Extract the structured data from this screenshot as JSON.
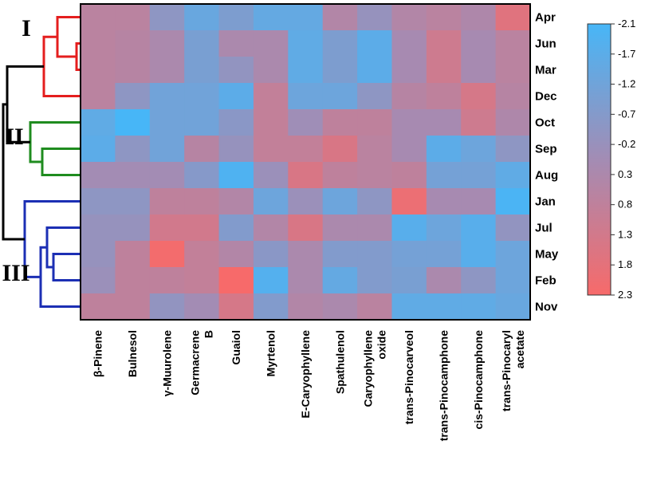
{
  "chart_data": {
    "type": "heatmap",
    "rows": [
      "Apr",
      "Jun",
      "Mar",
      "Dec",
      "Oct",
      "Sep",
      "Aug",
      "Jan",
      "Jul",
      "May",
      "Feb",
      "Nov"
    ],
    "columns": [
      [
        "β-Pinene"
      ],
      [
        "Bulnesol"
      ],
      [
        "γ-Muurolene"
      ],
      [
        "Germacrene",
        "B"
      ],
      [
        "Guaiol"
      ],
      [
        "Myrtenol"
      ],
      [
        "E-Caryophyllene"
      ],
      [
        "Spathulenol"
      ],
      [
        "Caryophyllene",
        "oxide"
      ],
      [
        "trans-Pinocarveol"
      ],
      [
        "trans-Pinocamphone"
      ],
      [
        "cis-Pinocamphone"
      ],
      [
        "trans-Pinocaryl",
        "acetate"
      ]
    ],
    "values": [
      [
        0.7,
        0.7,
        -0.4,
        -1.3,
        -0.8,
        -1.4,
        -1.4,
        0.5,
        -0.2,
        0.5,
        0.7,
        0.4,
        1.7
      ],
      [
        0.7,
        0.6,
        0.3,
        -0.9,
        0.3,
        0.3,
        -1.5,
        -0.8,
        -1.6,
        0.2,
        1.2,
        0.2,
        0.7
      ],
      [
        0.7,
        0.6,
        0.3,
        -0.9,
        -0.3,
        0.3,
        -1.5,
        -0.8,
        -1.6,
        0.2,
        1.2,
        0.2,
        0.7
      ],
      [
        0.7,
        -0.4,
        -1.1,
        -1.1,
        -1.6,
        0.9,
        -1.2,
        -1.2,
        -0.4,
        0.6,
        0.8,
        1.4,
        0.6
      ],
      [
        -1.5,
        -2.1,
        -1.1,
        -1.1,
        -0.5,
        0.9,
        0.0,
        0.8,
        0.8,
        0.2,
        0.2,
        1.2,
        0.4
      ],
      [
        -1.6,
        -0.4,
        -1.1,
        0.6,
        -0.2,
        0.9,
        0.9,
        1.5,
        0.7,
        0.2,
        -1.6,
        -1.2,
        -0.4
      ],
      [
        0.1,
        0.1,
        0.1,
        -0.6,
        -1.9,
        -0.1,
        1.5,
        0.8,
        0.7,
        0.8,
        -1.0,
        -1.0,
        -1.5
      ],
      [
        -0.4,
        -0.4,
        0.8,
        0.8,
        0.5,
        -1.2,
        -0.1,
        -1.2,
        -0.4,
        2.0,
        0.2,
        0.2,
        -2.0
      ],
      [
        -0.2,
        -0.2,
        1.3,
        1.3,
        -0.7,
        0.5,
        1.5,
        0.3,
        0.3,
        -1.7,
        -1.2,
        -1.7,
        -0.3
      ],
      [
        -0.2,
        0.8,
        2.2,
        0.9,
        0.5,
        -0.5,
        0.3,
        -0.7,
        -0.7,
        -1.0,
        -1.0,
        -1.7,
        -1.2
      ],
      [
        -0.1,
        0.8,
        0.8,
        0.9,
        2.3,
        -1.8,
        0.3,
        -1.4,
        -0.7,
        -0.9,
        0.3,
        -0.4,
        -1.2
      ],
      [
        0.8,
        0.8,
        -0.3,
        0.1,
        1.4,
        -0.7,
        0.5,
        0.3,
        0.7,
        -1.5,
        -1.5,
        -1.5,
        -1.3
      ]
    ],
    "legend": {
      "ticks": [
        "-2.1",
        "-1.7",
        "-1.2",
        "-0.7",
        "-0.2",
        "0.3",
        "0.8",
        "1.3",
        "1.8",
        "2.3"
      ],
      "min": -2.1,
      "max": 2.3,
      "low_color": "#47b6f7",
      "mid_color": "#a38cb4",
      "high_color": "#f76a6a",
      "placement": "right"
    },
    "clusters": [
      {
        "label": "I",
        "color": "#e41e1e",
        "members": [
          "Apr",
          "Jun",
          "Mar",
          "Dec"
        ]
      },
      {
        "label": "II",
        "color": "#1f8c1f",
        "members": [
          "Oct",
          "Sep",
          "Aug"
        ]
      },
      {
        "label": "III",
        "color": "#1c2fb4",
        "members": [
          "Jan",
          "Jul",
          "May",
          "Feb",
          "Nov"
        ]
      }
    ],
    "root_color": "#000000"
  }
}
